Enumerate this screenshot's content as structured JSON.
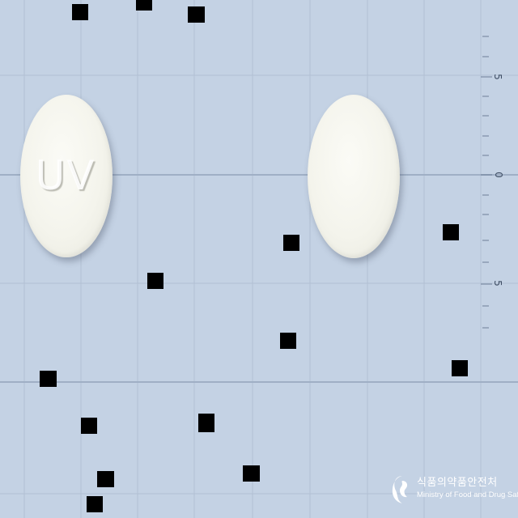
{
  "photo": {
    "subject": "pill-identification-photo",
    "background_color": "#c4d2e4",
    "grid_color": "#aebccf",
    "pills": [
      {
        "side": "front",
        "imprint": "UV",
        "color": "#f4f4ec",
        "shape": "round-oval"
      },
      {
        "side": "back",
        "imprint": "",
        "color": "#f4f4ec",
        "shape": "round-oval"
      }
    ],
    "ruler": {
      "labels": [
        "5",
        "0",
        "5"
      ]
    },
    "redaction_marks_color": "#000000"
  },
  "logo": {
    "korean": "식품의약품안전처",
    "english": "Ministry of Food and Drug Safety"
  }
}
